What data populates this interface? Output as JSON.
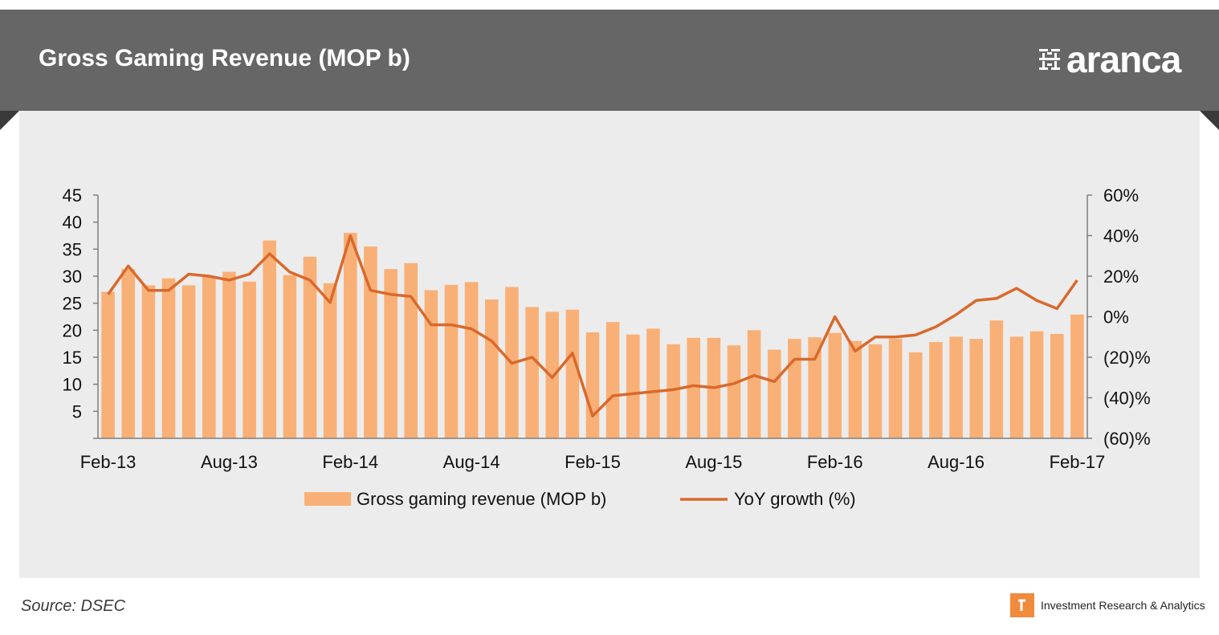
{
  "header": {
    "title": "Gross Gaming Revenue (MOP b)",
    "brand": "aranca"
  },
  "footer": {
    "source": "Source: DSEC",
    "tagline": "Investment Research & Analytics"
  },
  "colors": {
    "header_bg": "#666667",
    "panel_bg": "#ececec",
    "bar": "#f9b077",
    "line": "#d9692c",
    "accent": "#f08a3c"
  },
  "chart_data": {
    "type": "bar",
    "grid": false,
    "legend_position": "bottom-center",
    "x_tick_labels": [
      "Feb-13",
      "Aug-13",
      "Feb-14",
      "Aug-14",
      "Feb-15",
      "Aug-15",
      "Feb-16",
      "Aug-16",
      "Feb-17"
    ],
    "y_left": {
      "ticks": [
        "45",
        "40",
        "35",
        "30",
        "25",
        "20",
        "15",
        "10",
        "5"
      ],
      "ylim": [
        0,
        45
      ]
    },
    "y_right": {
      "ticks": [
        "60%",
        "40%",
        "20%",
        "0%",
        "(20)%",
        "(40)%",
        "(60)%"
      ],
      "ylim": [
        -60,
        60
      ]
    },
    "categories": [
      "Feb-13",
      "Mar-13",
      "Apr-13",
      "May-13",
      "Jun-13",
      "Jul-13",
      "Aug-13",
      "Sep-13",
      "Oct-13",
      "Nov-13",
      "Dec-13",
      "Jan-14",
      "Feb-14",
      "Mar-14",
      "Apr-14",
      "May-14",
      "Jun-14",
      "Jul-14",
      "Aug-14",
      "Sep-14",
      "Oct-14",
      "Nov-14",
      "Dec-14",
      "Jan-15",
      "Feb-15",
      "Mar-15",
      "Apr-15",
      "May-15",
      "Jun-15",
      "Jul-15",
      "Aug-15",
      "Sep-15",
      "Oct-15",
      "Nov-15",
      "Dec-15",
      "Jan-16",
      "Feb-16",
      "Mar-16",
      "Apr-16",
      "May-16",
      "Jun-16",
      "Jul-16",
      "Aug-16",
      "Sep-16",
      "Oct-16",
      "Nov-16",
      "Dec-16",
      "Jan-17",
      "Feb-17"
    ],
    "series": [
      {
        "name": "Gross gaming revenue (MOP b)",
        "type": "bar",
        "axis": "left",
        "values": [
          27.1,
          31.3,
          28.3,
          29.6,
          28.3,
          30.0,
          30.8,
          29.0,
          36.6,
          30.2,
          33.6,
          28.7,
          38.0,
          35.5,
          31.3,
          32.4,
          27.4,
          28.4,
          28.9,
          25.7,
          28.0,
          24.3,
          23.4,
          23.8,
          19.6,
          21.5,
          19.2,
          20.3,
          17.4,
          18.6,
          18.6,
          17.2,
          20.0,
          16.4,
          18.4,
          18.7,
          19.5,
          18.0,
          17.4,
          18.4,
          15.9,
          17.8,
          18.8,
          18.4,
          21.8,
          18.8,
          19.8,
          19.3,
          22.9
        ]
      },
      {
        "name": "YoY growth (%)",
        "type": "line",
        "axis": "right",
        "values": [
          11,
          25,
          13,
          13,
          21,
          20,
          18,
          21,
          31,
          22,
          18,
          7,
          40,
          13,
          11,
          10,
          -4,
          -4,
          -6,
          -12,
          -23,
          -20,
          -30,
          -18,
          -49,
          -39,
          -38,
          -37,
          -36,
          -34,
          -35,
          -33,
          -29,
          -32,
          -21,
          -21,
          0,
          -17,
          -10,
          -10,
          -9,
          -5,
          1,
          8,
          9,
          14,
          8,
          4,
          18
        ]
      }
    ]
  }
}
